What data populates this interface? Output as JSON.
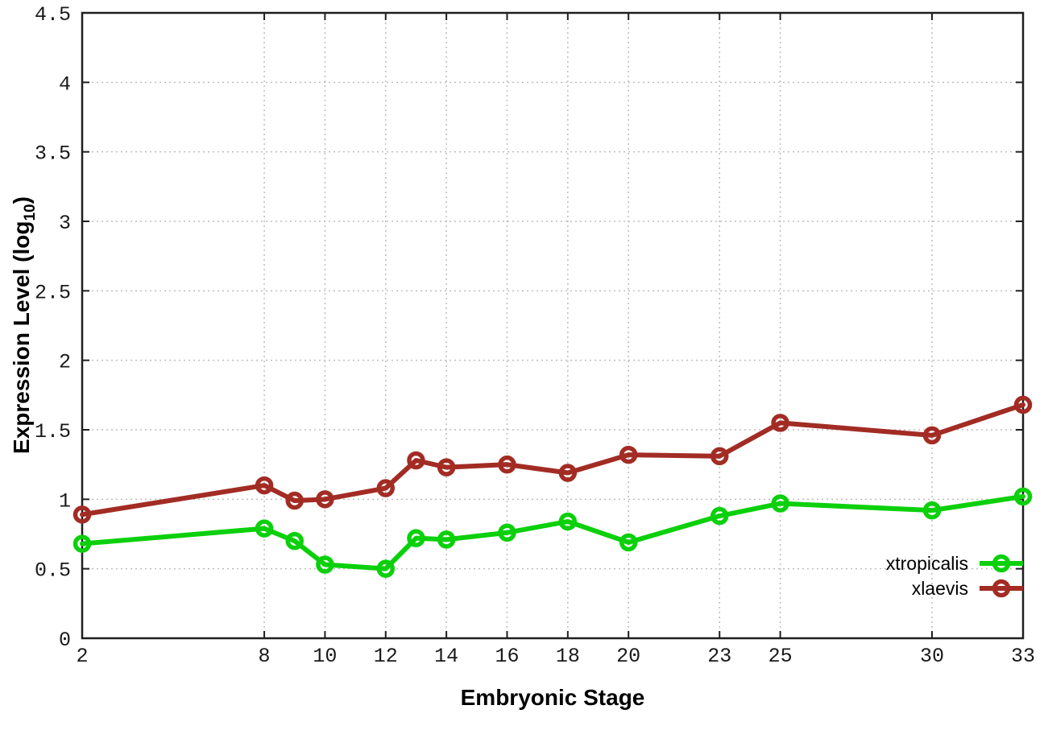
{
  "figure": {
    "xlabel": "Embryonic Stage",
    "ylabel_pre": "Expression Level (log",
    "ylabel_sub": "10",
    "ylabel_post": ")"
  },
  "colors": {
    "xtropicalis": "#0bd00b",
    "xlaevis": "#a22c24",
    "grid": "#bdbdbd",
    "axis": "#1f1f1f",
    "text": "#000000",
    "background": "#ffffff"
  },
  "chart_data": {
    "type": "line",
    "title": "",
    "xlabel": "Embryonic Stage",
    "ylabel": "Expression Level (log10)",
    "xlim": [
      2,
      33
    ],
    "ylim": [
      0,
      4.5
    ],
    "xticks": [
      2,
      8,
      10,
      12,
      14,
      16,
      18,
      20,
      23,
      25,
      30,
      33
    ],
    "yticks": [
      0,
      0.5,
      1,
      1.5,
      2,
      2.5,
      3,
      3.5,
      4,
      4.5
    ],
    "grid": true,
    "grid_style": "dotted",
    "legend_position": "inside bottom-right",
    "marker": "open-circle",
    "x": [
      2,
      8,
      9,
      10,
      12,
      13,
      14,
      16,
      18,
      20,
      23,
      25,
      30,
      33
    ],
    "series": [
      {
        "name": "xtropicalis",
        "color": "#0bd00b",
        "values": [
          0.68,
          0.79,
          0.7,
          0.53,
          0.5,
          0.72,
          0.71,
          0.76,
          0.84,
          0.69,
          0.88,
          0.97,
          0.92,
          1.02
        ]
      },
      {
        "name": "xlaevis",
        "color": "#a22c24",
        "values": [
          0.89,
          1.1,
          0.99,
          1.0,
          1.08,
          1.28,
          1.23,
          1.25,
          1.19,
          1.32,
          1.31,
          1.55,
          1.46,
          1.68
        ]
      }
    ]
  }
}
